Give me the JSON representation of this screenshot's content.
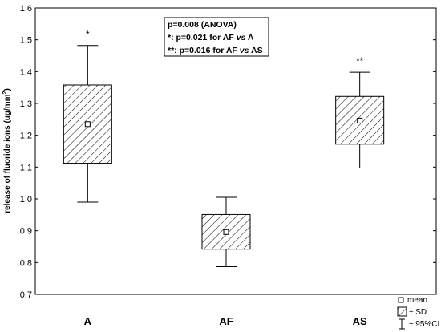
{
  "chart_data": {
    "type": "box",
    "title": "",
    "xlabel": "",
    "ylabel": "release of fluoride ions (ug/mm",
    "ylabel_superscript": "2",
    "ylabel_close": ")",
    "ylim": [
      0.7,
      1.6
    ],
    "yticks": [
      "0.7",
      "0.8",
      "0.9",
      "1.0",
      "1.1",
      "1.2",
      "1.3",
      "1.4",
      "1.5",
      "1.6"
    ],
    "categories": [
      "A",
      "AF",
      "AS"
    ],
    "groups": [
      {
        "name": "A",
        "mean": 1.235,
        "sd_low": 1.112,
        "sd_high": 1.358,
        "ci_low": 0.99,
        "ci_high": 1.482,
        "marker": "*"
      },
      {
        "name": "AF",
        "mean": 0.896,
        "sd_low": 0.842,
        "sd_high": 0.951,
        "ci_low": 0.787,
        "ci_high": 1.005,
        "marker": ""
      },
      {
        "name": "AS",
        "mean": 1.246,
        "sd_low": 1.172,
        "sd_high": 1.322,
        "ci_low": 1.097,
        "ci_high": 1.398,
        "marker": "**"
      }
    ],
    "annotation": {
      "line1": "p=0.008 (ANOVA)",
      "line2_prefix": "*: p=0.021  for AF ",
      "line2_vs": "vs",
      "line2_suffix": " A",
      "line3_prefix": "**: p=0.016 for AF ",
      "line3_vs": "vs",
      "line3_suffix": " AS"
    },
    "legend": {
      "position": "bottom-right",
      "items": [
        "mean",
        "± SD",
        "± 95%CI"
      ]
    },
    "grid": false
  }
}
